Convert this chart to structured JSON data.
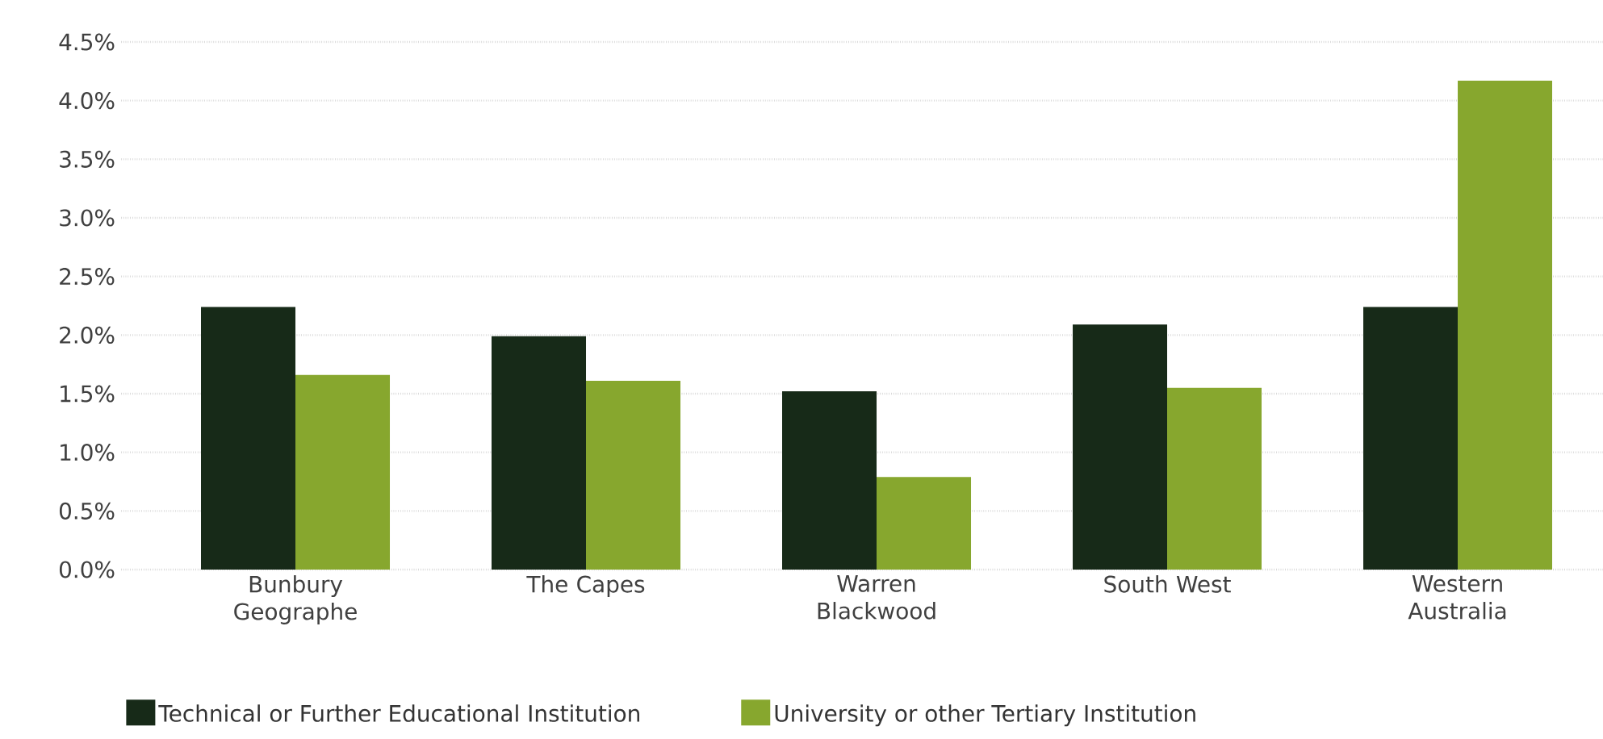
{
  "chart_data": {
    "type": "bar",
    "categories": [
      "Bunbury Geographe",
      "The Capes",
      "Warren Blackwood",
      "South West",
      "Western Australia"
    ],
    "series": [
      {
        "name": "Technical or Further Educational Institution",
        "color": "#172a18",
        "values": [
          2.24,
          1.99,
          1.52,
          2.09,
          2.24
        ]
      },
      {
        "name": "University or other Tertiary Institution",
        "color": "#87a72e",
        "values": [
          1.66,
          1.61,
          0.79,
          1.55,
          4.17
        ]
      }
    ],
    "ylim": [
      0,
      4.5
    ],
    "yticks": [
      {
        "value": 0,
        "label": "0.0%"
      },
      {
        "value": 0.5,
        "label": "0.5%"
      },
      {
        "value": 1,
        "label": "1.0%"
      },
      {
        "value": 1.5,
        "label": "1.5%"
      },
      {
        "value": 2,
        "label": "2.0%"
      },
      {
        "value": 2.5,
        "label": "2.5%"
      },
      {
        "value": 3,
        "label": "3.0%"
      },
      {
        "value": 3.5,
        "label": "3.5%"
      },
      {
        "value": 4,
        "label": "4.0%"
      },
      {
        "value": 4.5,
        "label": "4.5%"
      }
    ],
    "grid": "y",
    "legend": "bottom"
  }
}
